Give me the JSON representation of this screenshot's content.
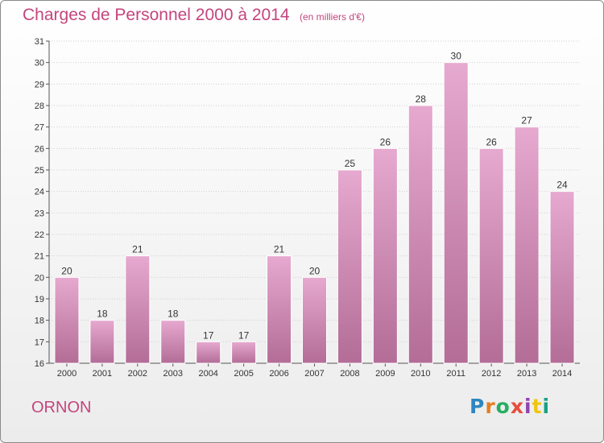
{
  "header": {
    "title": "Charges de Personnel 2000 à 2014",
    "unit_note": "(en milliers d'€)"
  },
  "footer": {
    "commune": "ORNON",
    "logo_text": "Proxiti",
    "logo_colors": [
      "#2e86c1",
      "#e67e22",
      "#27ae60",
      "#e74c3c",
      "#8e44ad",
      "#f1c40f",
      "#16a085"
    ]
  },
  "colors": {
    "bar_top": "#e6a9cf",
    "bar_bottom": "#b36d97",
    "accent": "#c4457e",
    "grid": "#cfcfcf"
  },
  "chart_data": {
    "type": "bar",
    "title": "Charges de Personnel 2000 à 2014",
    "subtitle": "(en milliers d'€)",
    "xlabel": "",
    "ylabel": "",
    "categories": [
      "2000",
      "2001",
      "2002",
      "2003",
      "2004",
      "2005",
      "2006",
      "2007",
      "2008",
      "2009",
      "2010",
      "2011",
      "2012",
      "2013",
      "2014"
    ],
    "values": [
      20,
      18,
      21,
      18,
      17,
      17,
      21,
      20,
      25,
      26,
      28,
      30,
      26,
      27,
      24
    ],
    "ylim": [
      16,
      31
    ],
    "yticks": [
      16,
      17,
      18,
      19,
      20,
      21,
      22,
      23,
      24,
      25,
      26,
      27,
      28,
      29,
      30,
      31
    ],
    "grid": true,
    "data_labels": true
  }
}
